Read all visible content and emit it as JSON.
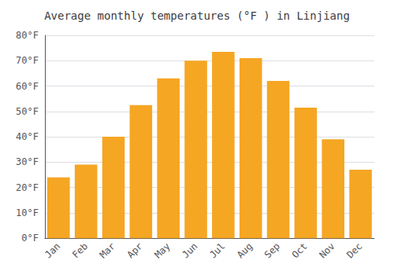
{
  "chart_data": {
    "type": "bar",
    "title": "Average monthly temperatures (°F ) in Linjiang",
    "categories": [
      "Jan",
      "Feb",
      "Mar",
      "Apr",
      "May",
      "Jun",
      "Jul",
      "Aug",
      "Sep",
      "Oct",
      "Nov",
      "Dec"
    ],
    "values": [
      24,
      29,
      40,
      52.5,
      63,
      70,
      73.5,
      71,
      62,
      51.5,
      39,
      27
    ],
    "color": "#F5A623",
    "ylim": [
      0,
      80
    ],
    "yticks": [
      {
        "value": 0,
        "label": "0°F"
      },
      {
        "value": 10,
        "label": "10°F"
      },
      {
        "value": 20,
        "label": "20°F"
      },
      {
        "value": 30,
        "label": "30°F"
      },
      {
        "value": 40,
        "label": "40°F"
      },
      {
        "value": 50,
        "label": "50°F"
      },
      {
        "value": 60,
        "label": "60°F"
      },
      {
        "value": 70,
        "label": "70°F"
      },
      {
        "value": 80,
        "label": "80°F"
      }
    ],
    "grid": true
  }
}
